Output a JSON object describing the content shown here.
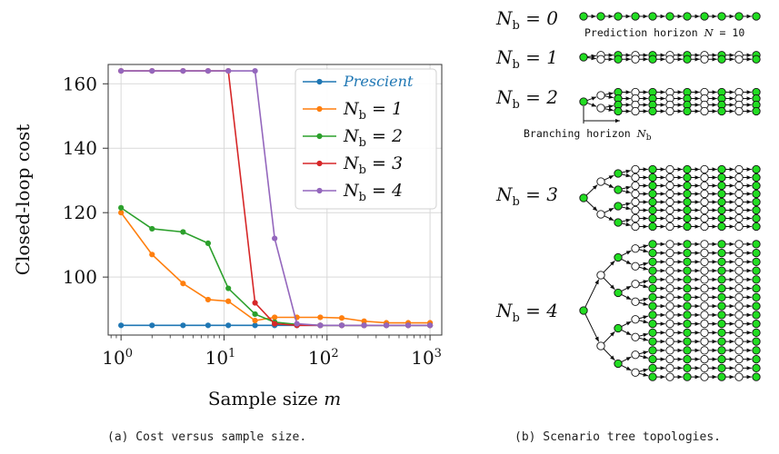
{
  "panel_a": {
    "caption": "(a) Cost versus sample size."
  },
  "panel_b": {
    "caption": "(b) Scenario tree topologies.",
    "prediction_label": "Prediction horizon N = 10",
    "branching_label": "Branching horizon N_b",
    "rows": [
      {
        "label": "N_b = 0",
        "nb": 0
      },
      {
        "label": "N_b = 1",
        "nb": 1
      },
      {
        "label": "N_b = 2",
        "nb": 2
      },
      {
        "label": "N_b = 3",
        "nb": 3
      },
      {
        "label": "N_b = 4",
        "nb": 4
      }
    ]
  },
  "chart_data": {
    "type": "line",
    "xlabel": "Sample size m",
    "ylabel": "Closed-loop cost",
    "xscale": "log",
    "xlim": [
      0.75,
      1300
    ],
    "ylim": [
      82,
      166
    ],
    "yticks": [
      100,
      120,
      140,
      160
    ],
    "xticks": [
      {
        "label": "10^0",
        "value": 1
      },
      {
        "label": "10^1",
        "value": 10
      },
      {
        "label": "10^2",
        "value": 100
      },
      {
        "label": "10^3",
        "value": 1000
      }
    ],
    "grid": true,
    "legend_position": "top-right",
    "x": [
      1,
      2,
      4,
      7,
      11,
      20,
      31,
      51,
      86,
      139,
      229,
      377,
      614,
      1000
    ],
    "series": [
      {
        "name": "Prescient",
        "color": "#1f77b4",
        "values": [
          85,
          85,
          85,
          85,
          85,
          85,
          85,
          85,
          85,
          85,
          85,
          85,
          85,
          85
        ]
      },
      {
        "name": "N_b = 1",
        "color": "#ff7f0e",
        "values": [
          120,
          107,
          98,
          93,
          92.5,
          86.5,
          87.5,
          87.5,
          87.5,
          87.3,
          86.3,
          85.8,
          85.8,
          85.8
        ]
      },
      {
        "name": "N_b = 2",
        "color": "#2ca02c",
        "values": [
          121.5,
          115,
          114,
          110.5,
          96.5,
          88.5,
          86,
          85.3,
          85,
          85,
          85,
          85,
          85,
          85
        ]
      },
      {
        "name": "N_b = 3",
        "color": "#d62728",
        "values": [
          164,
          164,
          164,
          164,
          164,
          92,
          85.5,
          85,
          85,
          85,
          85,
          85,
          85,
          85
        ]
      },
      {
        "name": "N_b = 4",
        "color": "#9467bd",
        "values": [
          164,
          164,
          164,
          164,
          164,
          164,
          112,
          85.5,
          85,
          85,
          85,
          85,
          85,
          85
        ]
      }
    ]
  }
}
